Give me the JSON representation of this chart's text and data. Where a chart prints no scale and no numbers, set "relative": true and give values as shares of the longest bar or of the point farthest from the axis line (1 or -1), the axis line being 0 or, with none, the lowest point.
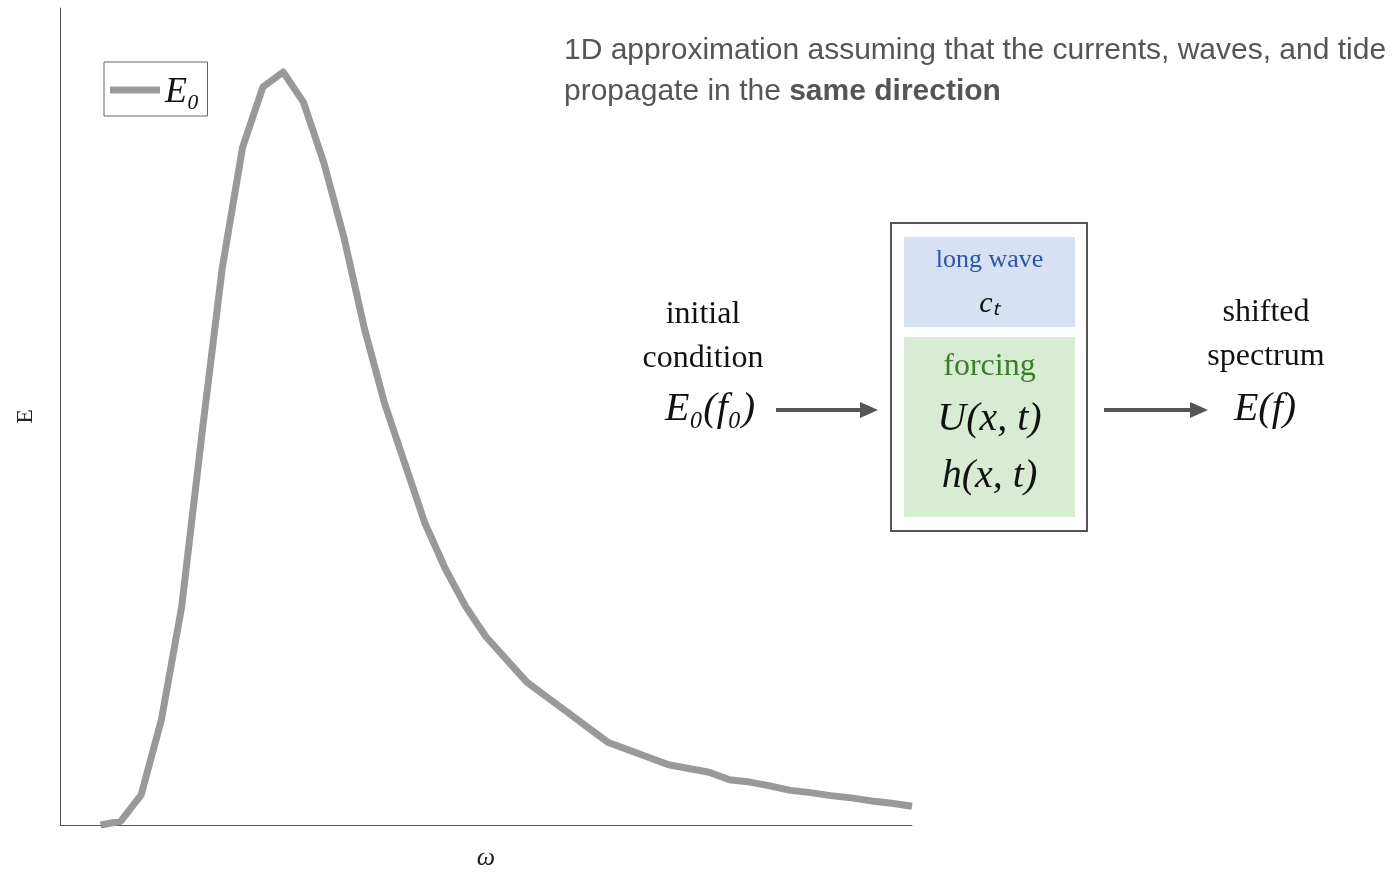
{
  "chart_data": {
    "type": "line",
    "relative": true,
    "xlabel": "ω",
    "ylabel": "E",
    "legend": "top left",
    "grid": false,
    "marker": "none",
    "line_style": "solid",
    "categories": [
      null,
      null,
      null,
      null,
      null,
      null,
      null,
      null,
      null,
      null,
      null,
      null,
      null,
      null,
      null,
      null,
      null,
      null,
      null,
      null,
      null,
      null,
      null,
      null,
      null,
      null,
      null,
      null,
      null,
      null,
      null,
      null,
      null,
      null,
      null,
      null,
      null,
      null,
      null,
      null,
      null,
      null,
      null
    ],
    "series": [
      {
        "name": "E₀",
        "color": "#999999",
        "values": [
          null,
          null,
          0,
          0.005,
          0.04,
          0.14,
          0.29,
          0.52,
          0.74,
          0.9,
          0.98,
          1,
          0.96,
          0.88,
          0.78,
          0.66,
          0.56,
          0.48,
          0.4,
          0.34,
          0.29,
          0.25,
          0.22,
          0.19,
          0.17,
          0.15,
          0.13,
          0.11,
          0.1,
          0.09,
          0.08,
          0.075,
          0.07,
          0.06,
          0.057,
          0.052,
          0.046,
          0.043,
          0.039,
          0.036,
          0.032,
          0.029,
          0.025
        ]
      }
    ],
    "annotations": [
      "1D approximation assuming that the currents, waves, and tide propagate in the",
      "same direction",
      "initial condition",
      "E₀(f₀)",
      "long wave",
      "cₜ",
      "forcing",
      "U(x, t)",
      "h(x, t)",
      "shifted spectrum",
      "E(f)"
    ]
  }
}
